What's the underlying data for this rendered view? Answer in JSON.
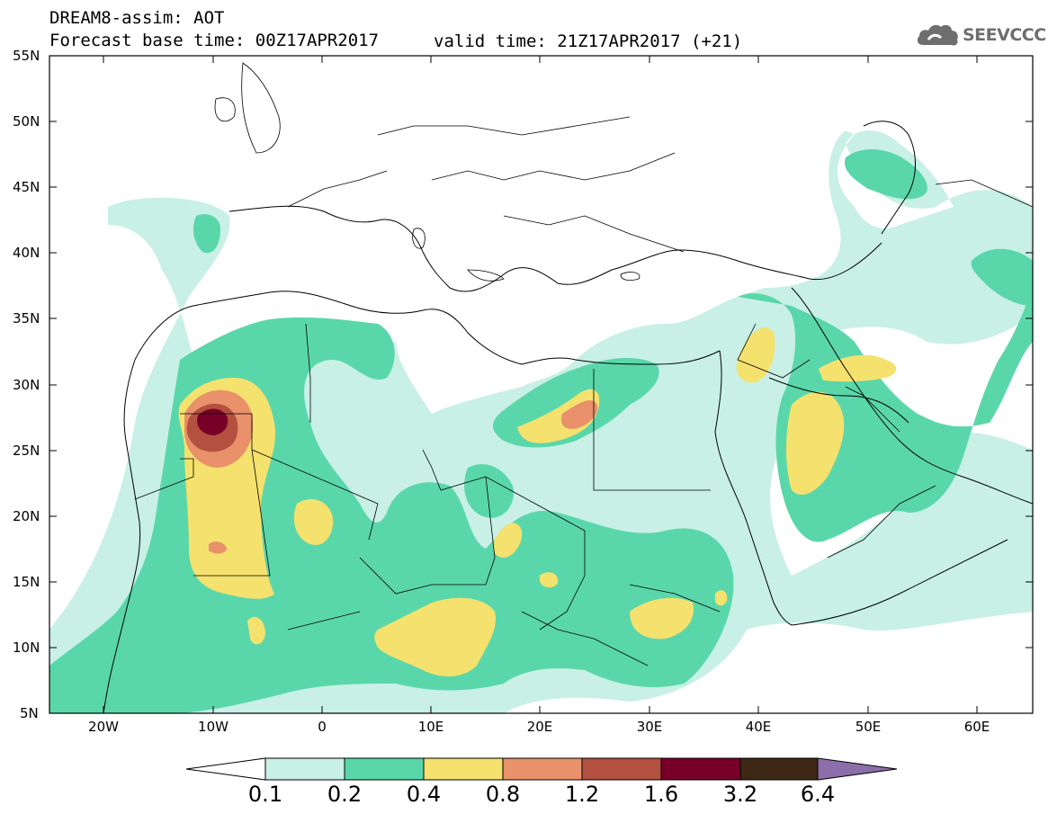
{
  "header": {
    "title": "DREAM8-assim: AOT",
    "base_time": "Forecast base time: 00Z17APR2017",
    "valid_time": "valid time: 21Z17APR2017 (+21)"
  },
  "logo": {
    "text": "SEEVCCC",
    "icon": "cloud-icon"
  },
  "axes": {
    "latitude_labels": [
      "55N",
      "50N",
      "45N",
      "40N",
      "35N",
      "30N",
      "25N",
      "20N",
      "15N",
      "10N",
      "5N"
    ],
    "longitude_labels": [
      "20W",
      "10W",
      "0",
      "10E",
      "20E",
      "30E",
      "40E",
      "50E",
      "60E"
    ]
  },
  "colorbar": {
    "labels": [
      "0.1",
      "0.2",
      "0.4",
      "0.8",
      "1.2",
      "1.6",
      "3.2",
      "6.4"
    ],
    "colors": [
      "#c8f0e6",
      "#5ad7aa",
      "#f5e16e",
      "#e8916a",
      "#b45040",
      "#780028",
      "#3c2814",
      "#8c6eaa"
    ]
  },
  "map": {
    "lon_range": [
      -25,
      65
    ],
    "lat_range": [
      5,
      55
    ],
    "field": "Aerosol Optical Thickness"
  }
}
